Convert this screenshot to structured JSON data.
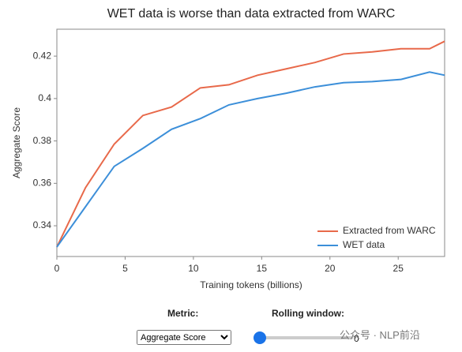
{
  "chart_data": {
    "type": "line",
    "title": "WET data is worse than data extracted from WARC",
    "x_label": "Training tokens (billions)",
    "y_label": "Aggregate Score",
    "x": [
      0,
      2.1,
      4.2,
      6.3,
      8.4,
      10.5,
      12.6,
      14.7,
      16.8,
      18.9,
      21,
      23.1,
      25.2,
      27.3,
      28.4
    ],
    "series": [
      {
        "name": "Extracted from WARC",
        "color": "#e8694a",
        "values": [
          0.33,
          0.358,
          0.3785,
          0.392,
          0.396,
          0.405,
          0.4065,
          0.411,
          0.414,
          0.417,
          0.421,
          0.422,
          0.4235,
          0.4235,
          0.427
        ]
      },
      {
        "name": "WET data",
        "color": "#3c8fd9",
        "values": [
          0.33,
          0.349,
          0.368,
          0.3765,
          0.3855,
          0.3905,
          0.397,
          0.4,
          0.4025,
          0.4055,
          0.4075,
          0.408,
          0.409,
          0.4125,
          0.411
        ]
      }
    ],
    "xlim": [
      0,
      28.4
    ],
    "ylim": [
      0.3255,
      0.4327
    ],
    "xticks": [
      0,
      5,
      10,
      15,
      20,
      25
    ],
    "yticks": [
      0.34,
      0.36,
      0.38,
      0.4,
      0.42
    ],
    "legend": "lower right"
  },
  "controls": {
    "metric_label": "Metric:",
    "metric_options": [
      "Aggregate Score"
    ],
    "rolling_label": "Rolling window:",
    "rolling_value": 0
  },
  "watermark": "公众号 · NLP前沿"
}
